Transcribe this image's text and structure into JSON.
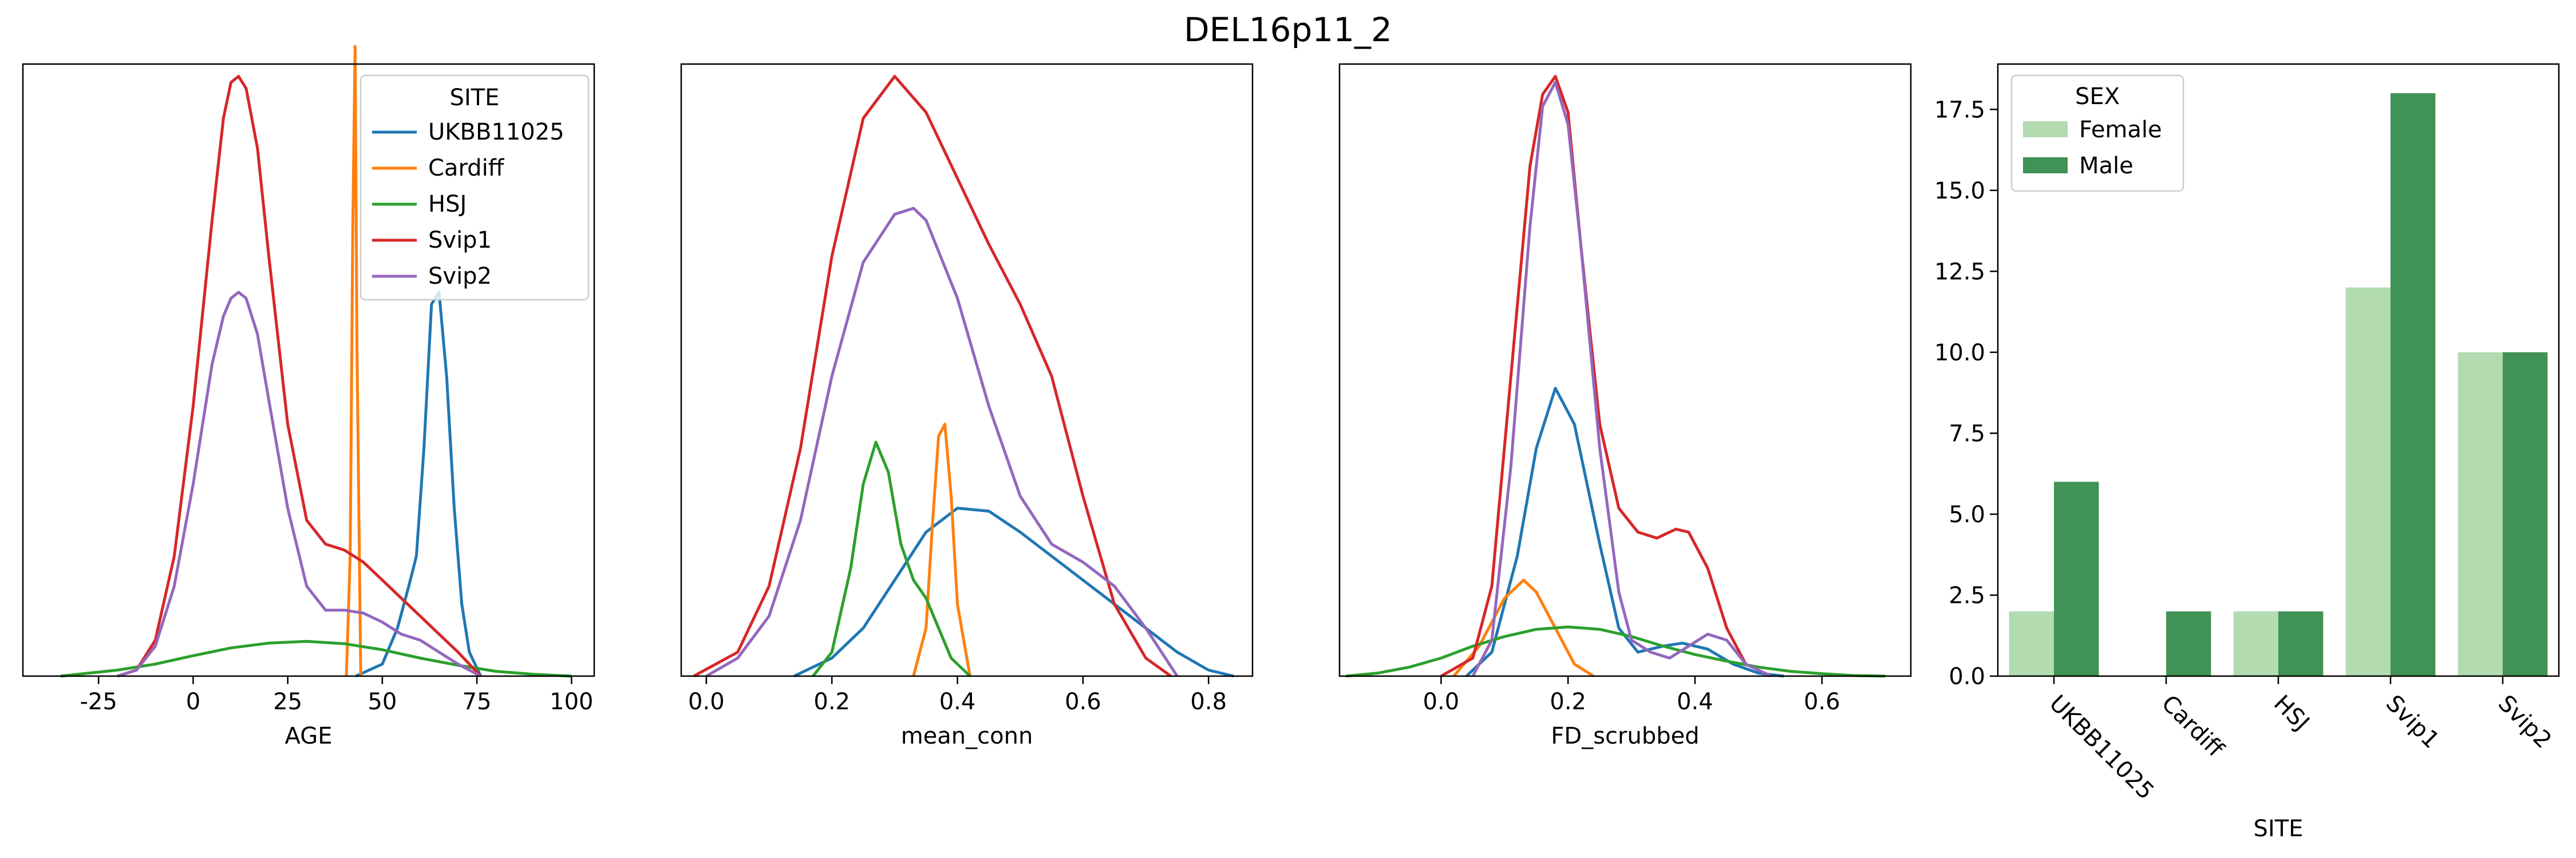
{
  "figure": {
    "title": "DEL16p11_2"
  },
  "colors": {
    "UKBB11025": "#1f77b4",
    "Cardiff": "#ff7f0e",
    "HSJ": "#2ca02c",
    "Svip1": "#d62728",
    "Svip2": "#9467bd",
    "Female": "#b2dbb0",
    "Male": "#419256"
  },
  "chart_data": [
    {
      "type": "line",
      "xlabel": "AGE",
      "ylabel": "",
      "xlim": [
        -45,
        106
      ],
      "ylim": [
        0,
        1
      ],
      "xticks": [
        "-25",
        "0",
        "25",
        "50",
        "75",
        "100"
      ],
      "xtick_values": [
        -25,
        0,
        25,
        50,
        75,
        100
      ],
      "legend": {
        "title": "SITE",
        "placement": "top-right",
        "entries": [
          "UKBB11025",
          "Cardiff",
          "HSJ",
          "Svip1",
          "Svip2"
        ]
      },
      "series": [
        {
          "name": "UKBB11025",
          "x": [
            43,
            50,
            54,
            57,
            59,
            61,
            63,
            65,
            67,
            69,
            71,
            73,
            76
          ],
          "y": [
            0,
            0.02,
            0.08,
            0.15,
            0.2,
            0.38,
            0.62,
            0.64,
            0.5,
            0.28,
            0.12,
            0.04,
            0
          ]
        },
        {
          "name": "Cardiff",
          "x": [
            40.5,
            41.5,
            42.2,
            42.8,
            43.3,
            44.3
          ],
          "y": [
            0,
            0.2,
            0.75,
            1.05,
            0.55,
            0
          ]
        },
        {
          "name": "HSJ",
          "x": [
            -35,
            -20,
            -10,
            0,
            10,
            20,
            30,
            40,
            50,
            60,
            70,
            80,
            90,
            100
          ],
          "y": [
            0,
            0.01,
            0.02,
            0.034,
            0.047,
            0.055,
            0.058,
            0.054,
            0.044,
            0.03,
            0.018,
            0.008,
            0.003,
            0
          ]
        },
        {
          "name": "Svip1",
          "x": [
            -20,
            -15,
            -10,
            -5,
            0,
            5,
            8,
            10,
            12,
            14,
            17,
            20,
            25,
            30,
            35,
            40,
            45,
            50,
            55,
            60,
            65,
            70,
            76
          ],
          "y": [
            0,
            0.01,
            0.06,
            0.2,
            0.45,
            0.76,
            0.93,
            0.99,
            1.0,
            0.98,
            0.88,
            0.7,
            0.42,
            0.26,
            0.22,
            0.21,
            0.19,
            0.16,
            0.13,
            0.1,
            0.07,
            0.04,
            0
          ]
        },
        {
          "name": "Svip2",
          "x": [
            -20,
            -15,
            -10,
            -5,
            0,
            5,
            8,
            10,
            12,
            14,
            17,
            20,
            25,
            30,
            35,
            40,
            45,
            50,
            55,
            60,
            65,
            70,
            76
          ],
          "y": [
            0,
            0.01,
            0.05,
            0.15,
            0.32,
            0.52,
            0.6,
            0.63,
            0.64,
            0.63,
            0.57,
            0.46,
            0.28,
            0.15,
            0.11,
            0.11,
            0.105,
            0.09,
            0.07,
            0.06,
            0.04,
            0.02,
            0
          ]
        }
      ]
    },
    {
      "type": "line",
      "xlabel": "mean_conn",
      "ylabel": "",
      "xlim": [
        -0.04,
        0.87
      ],
      "ylim": [
        0,
        1
      ],
      "xticks": [
        "0.0",
        "0.2",
        "0.4",
        "0.6",
        "0.8"
      ],
      "xtick_values": [
        0,
        0.2,
        0.4,
        0.6,
        0.8
      ],
      "series": [
        {
          "name": "UKBB11025",
          "x": [
            0.14,
            0.2,
            0.25,
            0.3,
            0.35,
            0.4,
            0.45,
            0.5,
            0.55,
            0.6,
            0.65,
            0.7,
            0.75,
            0.8,
            0.84
          ],
          "y": [
            0,
            0.03,
            0.08,
            0.16,
            0.24,
            0.28,
            0.275,
            0.24,
            0.2,
            0.16,
            0.12,
            0.08,
            0.04,
            0.01,
            0
          ]
        },
        {
          "name": "Cardiff",
          "x": [
            0.33,
            0.35,
            0.36,
            0.37,
            0.38,
            0.39,
            0.4,
            0.42
          ],
          "y": [
            0,
            0.08,
            0.25,
            0.4,
            0.42,
            0.3,
            0.12,
            0
          ]
        },
        {
          "name": "HSJ",
          "x": [
            0.17,
            0.2,
            0.23,
            0.25,
            0.27,
            0.29,
            0.31,
            0.33,
            0.35,
            0.37,
            0.39,
            0.42
          ],
          "y": [
            0,
            0.04,
            0.18,
            0.32,
            0.39,
            0.34,
            0.22,
            0.16,
            0.13,
            0.08,
            0.03,
            0
          ]
        },
        {
          "name": "Svip1",
          "x": [
            -0.02,
            0.05,
            0.1,
            0.15,
            0.2,
            0.25,
            0.3,
            0.35,
            0.4,
            0.45,
            0.5,
            0.55,
            0.6,
            0.65,
            0.7,
            0.74
          ],
          "y": [
            0,
            0.04,
            0.15,
            0.38,
            0.7,
            0.93,
            1.0,
            0.94,
            0.83,
            0.72,
            0.62,
            0.5,
            0.3,
            0.12,
            0.03,
            0
          ]
        },
        {
          "name": "Svip2",
          "x": [
            0.0,
            0.05,
            0.1,
            0.15,
            0.2,
            0.25,
            0.3,
            0.33,
            0.35,
            0.4,
            0.45,
            0.5,
            0.55,
            0.6,
            0.65,
            0.7,
            0.75
          ],
          "y": [
            0,
            0.03,
            0.1,
            0.26,
            0.5,
            0.69,
            0.77,
            0.78,
            0.76,
            0.63,
            0.45,
            0.3,
            0.22,
            0.19,
            0.15,
            0.08,
            0
          ]
        }
      ]
    },
    {
      "type": "line",
      "xlabel": "FD_scrubbed",
      "ylabel": "",
      "xlim": [
        -0.16,
        0.74
      ],
      "ylim": [
        0,
        1
      ],
      "xticks": [
        "0.0",
        "0.2",
        "0.4",
        "0.6"
      ],
      "xtick_values": [
        0,
        0.2,
        0.4,
        0.6
      ],
      "series": [
        {
          "name": "UKBB11025",
          "x": [
            0.04,
            0.08,
            0.12,
            0.15,
            0.18,
            0.21,
            0.25,
            0.28,
            0.31,
            0.35,
            0.38,
            0.42,
            0.46,
            0.5,
            0.54
          ],
          "y": [
            0,
            0.04,
            0.2,
            0.38,
            0.48,
            0.42,
            0.22,
            0.08,
            0.04,
            0.05,
            0.055,
            0.045,
            0.02,
            0.005,
            0
          ]
        },
        {
          "name": "Cardiff",
          "x": [
            0.02,
            0.06,
            0.1,
            0.13,
            0.15,
            0.18,
            0.21,
            0.24
          ],
          "y": [
            0,
            0.05,
            0.13,
            0.16,
            0.14,
            0.08,
            0.02,
            0
          ]
        },
        {
          "name": "HSJ",
          "x": [
            -0.15,
            -0.1,
            -0.05,
            0,
            0.05,
            0.1,
            0.15,
            0.2,
            0.25,
            0.3,
            0.35,
            0.4,
            0.45,
            0.5,
            0.55,
            0.6,
            0.65,
            0.7
          ],
          "y": [
            0,
            0.005,
            0.015,
            0.03,
            0.05,
            0.066,
            0.078,
            0.082,
            0.078,
            0.066,
            0.05,
            0.036,
            0.025,
            0.015,
            0.008,
            0.004,
            0.001,
            0
          ]
        },
        {
          "name": "Svip1",
          "x": [
            0.0,
            0.05,
            0.08,
            0.11,
            0.14,
            0.16,
            0.18,
            0.2,
            0.22,
            0.25,
            0.28,
            0.31,
            0.34,
            0.37,
            0.39,
            0.42,
            0.45,
            0.48,
            0.52
          ],
          "y": [
            0,
            0.03,
            0.15,
            0.5,
            0.85,
            0.97,
            1.0,
            0.94,
            0.72,
            0.42,
            0.28,
            0.24,
            0.23,
            0.245,
            0.24,
            0.18,
            0.08,
            0.02,
            0
          ]
        },
        {
          "name": "Svip2",
          "x": [
            0.05,
            0.08,
            0.11,
            0.14,
            0.16,
            0.18,
            0.2,
            0.22,
            0.25,
            0.28,
            0.3,
            0.33,
            0.36,
            0.39,
            0.42,
            0.45,
            0.48,
            0.52
          ],
          "y": [
            0,
            0.06,
            0.35,
            0.75,
            0.95,
            0.99,
            0.92,
            0.72,
            0.38,
            0.14,
            0.06,
            0.04,
            0.03,
            0.05,
            0.07,
            0.06,
            0.02,
            0
          ]
        }
      ]
    },
    {
      "type": "bar",
      "xlabel": "SITE",
      "ylabel": "",
      "categories": [
        "UKBB11025",
        "Cardiff",
        "HSJ",
        "Svip1",
        "Svip2"
      ],
      "ylim": [
        0,
        18.9
      ],
      "yticks": [
        "0.0",
        "2.5",
        "5.0",
        "7.5",
        "10.0",
        "12.5",
        "15.0",
        "17.5"
      ],
      "ytick_values": [
        0,
        2.5,
        5,
        7.5,
        10,
        12.5,
        15,
        17.5
      ],
      "legend": {
        "title": "SEX",
        "placement": "top-left",
        "entries": [
          "Female",
          "Male"
        ]
      },
      "series": [
        {
          "name": "Female",
          "values": [
            2,
            0,
            2,
            12,
            10
          ]
        },
        {
          "name": "Male",
          "values": [
            6,
            2,
            2,
            18,
            10
          ]
        }
      ]
    }
  ]
}
